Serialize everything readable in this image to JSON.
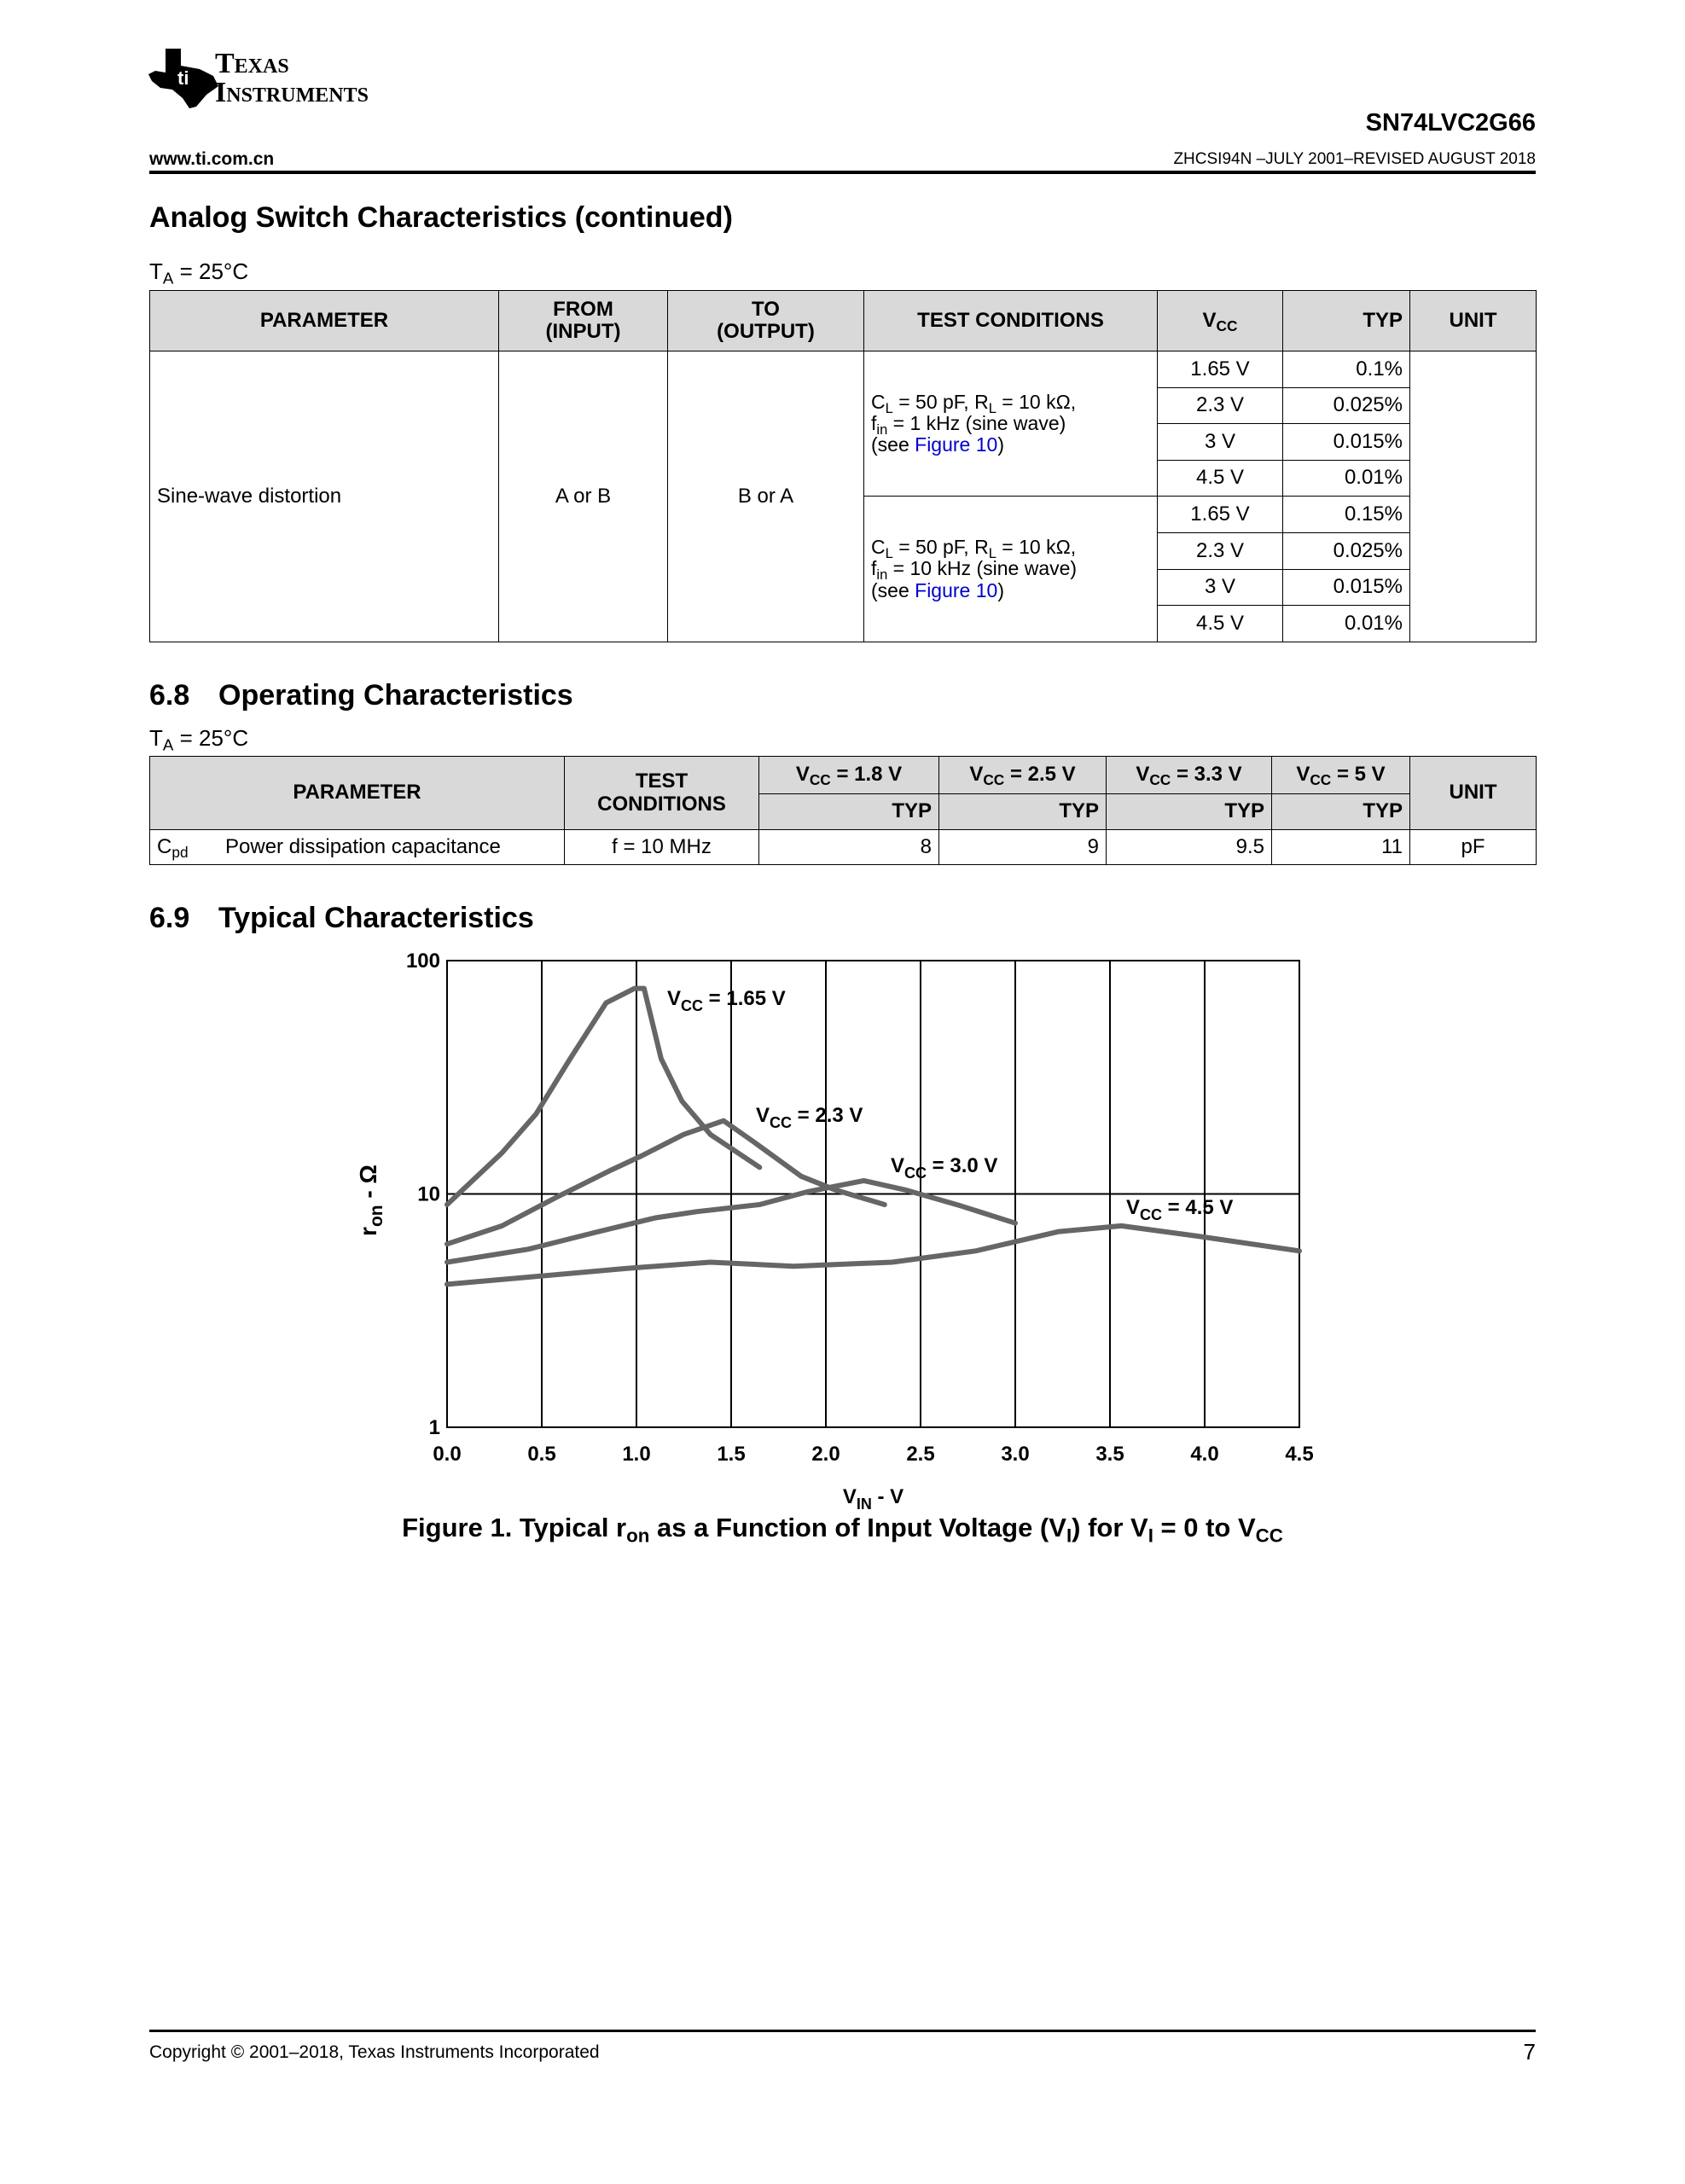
{
  "header": {
    "logo": [
      "Texas",
      "Instruments"
    ],
    "part": "SN74LVC2G66",
    "url": "www.ti.com.cn",
    "doc": "ZHCSI94N –JULY 2001–REVISED AUGUST 2018"
  },
  "section1": {
    "title": "Analog Switch Characteristics (continued)",
    "condition": [
      "T",
      {
        "sub": "A"
      },
      " = 25°C"
    ],
    "table": {
      "header": [
        [
          "PARAMETER"
        ],
        [
          "FROM",
          "(INPUT)"
        ],
        [
          "TO",
          "(OUTPUT)"
        ],
        [
          "TEST CONDITIONS"
        ],
        [
          [
            "V",
            {
              "sub": "CC"
            }
          ]
        ],
        [
          "TYP"
        ],
        [
          "UNIT"
        ]
      ],
      "parameter": "Sine-wave distortion",
      "from": "A or B",
      "to": "B or A",
      "groups": [
        {
          "conditions": [
            [
              "C",
              {
                "sub": "L"
              },
              " = 50 pF, R",
              {
                "sub": "L"
              },
              " = 10 kΩ,"
            ],
            [
              "f",
              {
                "sub": "in"
              },
              " = 1 kHz (sine wave)"
            ],
            [
              "(see ",
              {
                "link": "Figure 10"
              },
              ")"
            ]
          ],
          "rows": [
            [
              "1.65 V",
              "0.1%"
            ],
            [
              "2.3 V",
              "0.025%"
            ],
            [
              "3 V",
              "0.015%"
            ],
            [
              "4.5 V",
              "0.01%"
            ]
          ]
        },
        {
          "conditions": [
            [
              "C",
              {
                "sub": "L"
              },
              " = 50 pF, R",
              {
                "sub": "L"
              },
              " = 10 kΩ,"
            ],
            [
              "f",
              {
                "sub": "in"
              },
              " = 10 kHz (sine wave)"
            ],
            [
              "(see ",
              {
                "link": "Figure 10"
              },
              ")"
            ]
          ],
          "rows": [
            [
              "1.65 V",
              "0.15%"
            ],
            [
              "2.3 V",
              "0.025%"
            ],
            [
              "3 V",
              "0.015%"
            ],
            [
              "4.5 V",
              "0.01%"
            ]
          ]
        }
      ]
    }
  },
  "section2": {
    "number": "6.8",
    "title": "Operating Characteristics",
    "condition": [
      "T",
      {
        "sub": "A"
      },
      " = 25°C"
    ],
    "table": {
      "header": {
        "parameter": "PARAMETER",
        "conditions": [
          "TEST",
          "CONDITIONS"
        ],
        "vcc": [
          [
            "V",
            {
              "sub": "CC"
            },
            " = 1.8 V"
          ],
          [
            "V",
            {
              "sub": "CC"
            },
            " = 2.5 V"
          ],
          [
            "V",
            {
              "sub": "CC"
            },
            " = 3.3 V"
          ],
          [
            "V",
            {
              "sub": "CC"
            },
            " = 5 V"
          ]
        ],
        "typ": [
          "TYP",
          "TYP",
          "TYP",
          "TYP"
        ],
        "unit": "UNIT"
      },
      "rows": [
        {
          "symbol": [
            "C",
            {
              "sub": "pd"
            }
          ],
          "parameter": "Power dissipation capacitance",
          "conditions": "f = 10 MHz",
          "typ": [
            8,
            9,
            9.5,
            11
          ],
          "unit": "pF"
        }
      ]
    }
  },
  "section3": {
    "number": "6.9",
    "title": "Typical Characteristics"
  },
  "chart_data": {
    "type": "line",
    "title": [
      "Figure 1. Typical r",
      {
        "sub": "on"
      },
      " as a Function of Input Voltage (V",
      {
        "sub": "I"
      },
      ") for V",
      {
        "sub": "I"
      },
      " = 0 to V",
      {
        "sub": "CC"
      }
    ],
    "xlabel": [
      "V",
      {
        "sub": "IN"
      },
      " - V"
    ],
    "ylabel": [
      "r",
      {
        "sub": "on"
      },
      " - Ω"
    ],
    "xlim": [
      0,
      4.5
    ],
    "ylim": [
      1,
      100
    ],
    "ylog": true,
    "grid": true,
    "xticks": [
      {
        "value": 0,
        "label": "0.0"
      },
      0.5,
      {
        "value": 1,
        "label": "1.0"
      },
      1.5,
      {
        "value": 2,
        "label": "2.0"
      },
      2.5,
      {
        "value": 3,
        "label": "3.0"
      },
      3.5,
      {
        "value": 4,
        "label": "4.0"
      },
      4.5
    ],
    "yticks": [
      1,
      10,
      100
    ],
    "series": [
      {
        "name": [
          "V",
          {
            "sub": "CC"
          },
          " = 1.65 V"
        ],
        "color": "#666666",
        "x": [
          0,
          0.29,
          0.47,
          0.65,
          0.84,
          0.99,
          1.04,
          1.13,
          1.24,
          1.39,
          1.65
        ],
        "values": [
          9.0,
          15,
          22,
          38,
          66,
          76,
          76,
          38,
          25,
          18,
          13
        ]
      },
      {
        "name": [
          "V",
          {
            "sub": "CC"
          },
          " = 2.3 V"
        ],
        "color": "#666666",
        "x": [
          0,
          0.29,
          0.58,
          0.87,
          1.03,
          1.25,
          1.46,
          1.62,
          1.87,
          2.05,
          2.31
        ],
        "values": [
          6.1,
          7.3,
          9.7,
          12.7,
          14.6,
          18,
          20.6,
          16.7,
          11.9,
          10.4,
          9.0
        ]
      },
      {
        "name": [
          "V",
          {
            "sub": "CC"
          },
          " = 3.0 V"
        ],
        "color": "#666666",
        "x": [
          0,
          0.43,
          0.8,
          1.1,
          1.32,
          1.65,
          1.9,
          2.2,
          2.42,
          2.71,
          3.0
        ],
        "values": [
          5.1,
          5.8,
          6.9,
          7.9,
          8.4,
          9.0,
          10.2,
          11.4,
          10.4,
          8.9,
          7.5
        ]
      },
      {
        "name": [
          "V",
          {
            "sub": "CC"
          },
          " = 4.5 V"
        ],
        "color": "#666666",
        "x": [
          0,
          0.43,
          0.95,
          1.39,
          1.83,
          2.35,
          2.79,
          3.23,
          3.56,
          3.96,
          4.5
        ],
        "values": [
          4.1,
          4.4,
          4.8,
          5.1,
          4.9,
          5.1,
          5.7,
          6.9,
          7.3,
          6.6,
          5.7
        ]
      }
    ]
  },
  "footer": {
    "copyright": "Copyright © 2001–2018, Texas Instruments Incorporated",
    "page": "7"
  }
}
